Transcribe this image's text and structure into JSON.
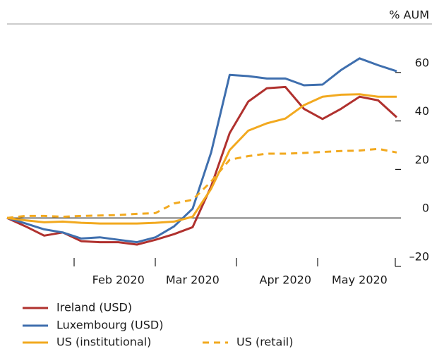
{
  "chart_data": {
    "type": "line",
    "y_axis_label": "% AUM",
    "categories": [
      null,
      null,
      null,
      null,
      null,
      null,
      "Feb 2020",
      null,
      null,
      null,
      "Mar 2020",
      null,
      null,
      null,
      null,
      "Apr 2020",
      null,
      null,
      null,
      "May 2020",
      null,
      null
    ],
    "series": [
      {
        "name": "Ireland (USD)",
        "color": "#b0312e",
        "dash": false,
        "values": [
          0,
          -3.5,
          -7.3,
          -6,
          -9.6,
          -10,
          -10,
          -11,
          -9,
          -6.7,
          -3.8,
          13,
          35,
          48,
          53.5,
          54,
          45,
          40.8,
          45,
          50,
          48.5,
          41.5
        ]
      },
      {
        "name": "Luxembourg (USD)",
        "color": "#3f6fae",
        "dash": false,
        "values": [
          0,
          -2.3,
          -4.7,
          -6,
          -8.5,
          -8,
          -9,
          -10,
          -8,
          -3.5,
          3.8,
          27,
          59,
          58.5,
          57.5,
          57.5,
          54.7,
          55,
          61,
          65.8,
          63,
          60.5
        ]
      },
      {
        "name": "US (institutional)",
        "color": "#f2a91f",
        "dash": false,
        "values": [
          0,
          -1,
          -1.8,
          -1.5,
          -2,
          -2.3,
          -2.3,
          -2.3,
          -2,
          -1.5,
          0.5,
          12,
          28,
          36,
          39,
          41,
          46.5,
          50,
          50.8,
          51,
          50,
          50
        ]
      },
      {
        "name": "US (retail)",
        "color": "#f2a91f",
        "dash": true,
        "values": [
          0,
          0.8,
          0.8,
          0.5,
          0.8,
          1,
          1.2,
          1.7,
          2,
          6,
          7.5,
          15,
          24,
          25.5,
          26.5,
          26.5,
          26.8,
          27.2,
          27.6,
          27.8,
          28.5,
          27
        ]
      }
    ],
    "ylim": [
      -20,
      80
    ],
    "yticks": [
      {
        "value": -20,
        "label": "–20"
      },
      0,
      20,
      40,
      60
    ]
  }
}
